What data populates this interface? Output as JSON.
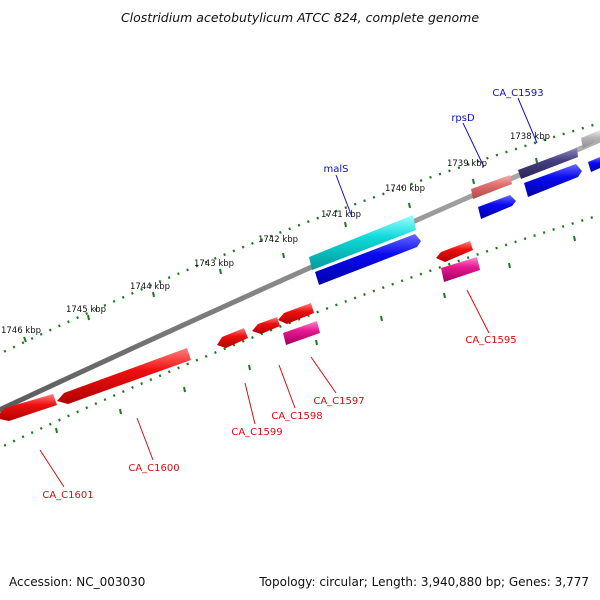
{
  "title": "Clostridium acetobutylicum ATCC 824, complete genome",
  "footer": {
    "accession": "Accession: NC_003030",
    "summary": "Topology: circular; Length: 3,940,880 bp; Genes: 3,777"
  },
  "scale_labels": [
    "1738 kbp",
    "1739 kbp",
    "1740 kbp",
    "1741 kbp",
    "1742 kbp",
    "1743 kbp",
    "1744 kbp",
    "1745 kbp",
    "1746 kbp"
  ],
  "gene_labels": {
    "above": [
      "CA_C1593",
      "rpsD",
      "malS"
    ],
    "below": [
      "CA_C1595",
      "CA_C1597",
      "CA_C1598",
      "CA_C1599",
      "CA_C1600",
      "CA_C1601"
    ]
  },
  "colors": {
    "backbone": "#8a8a8a",
    "tick": "#1e7a1e",
    "label_above": "#1010c8",
    "label_below": "#d01010",
    "red_gene": "#ee1010",
    "blue_gene": "#0a0af0",
    "cyan_gene": "#10dada",
    "pink_gene": "#e81890",
    "salmon_gene": "#e07070",
    "navy_gene": "#454080",
    "grey_gene": "#b8b8b8"
  }
}
